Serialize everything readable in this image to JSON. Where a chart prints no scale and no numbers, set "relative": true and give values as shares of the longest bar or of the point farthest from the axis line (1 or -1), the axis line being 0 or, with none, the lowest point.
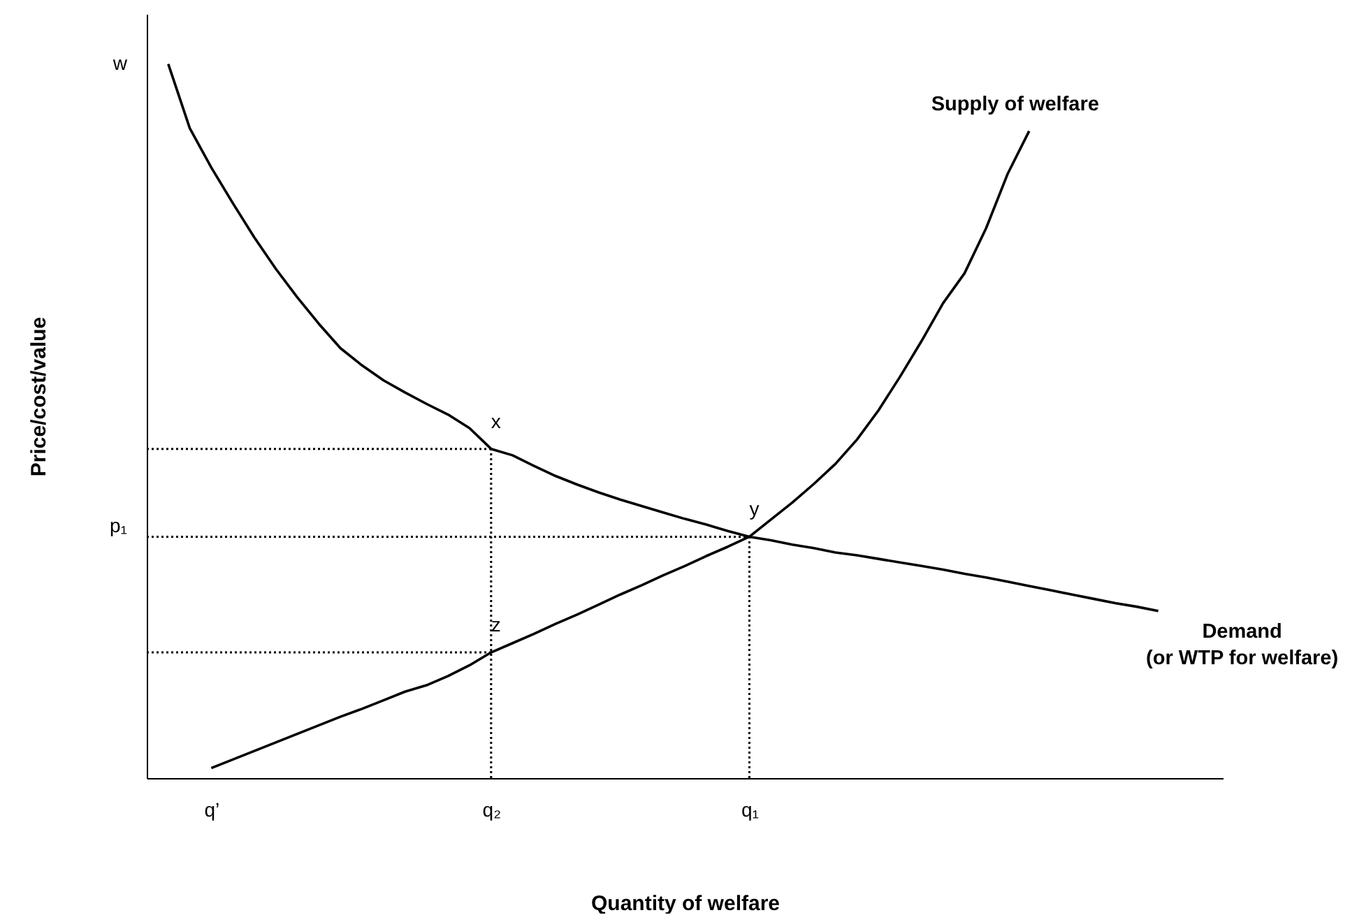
{
  "chart_data": {
    "type": "line",
    "relative": true,
    "xlabel": "Quantity of welfare",
    "ylabel": "Price/cost/value",
    "categories": [
      null,
      null,
      null,
      "q’",
      null,
      null,
      null,
      null,
      null,
      null,
      null,
      null,
      null,
      null,
      null,
      null,
      "q₂",
      null,
      null,
      null,
      null,
      null,
      null,
      null,
      null,
      null,
      null,
      null,
      "q₁",
      null,
      null,
      null,
      null,
      null,
      null,
      null,
      null,
      null,
      null,
      null,
      null,
      null,
      null,
      null,
      null,
      null,
      null,
      null,
      null,
      null,
      null
    ],
    "grid": false,
    "marker": "none",
    "series": [
      {
        "name": "Supply of welfare",
        "color": "#000000",
        "values": [
          null,
          null,
          null,
          0.014,
          0.026,
          0.038,
          0.05,
          0.062,
          0.074,
          0.086,
          0.097,
          0.109,
          0.121,
          0.13,
          0.143,
          0.158,
          0.176,
          0.189,
          0.202,
          0.216,
          0.229,
          0.243,
          0.257,
          0.27,
          0.284,
          0.297,
          0.311,
          0.324,
          0.338,
          0.362,
          0.386,
          0.412,
          0.44,
          0.474,
          0.515,
          0.562,
          0.612,
          0.665,
          0.707,
          0.77,
          0.846,
          0.906,
          null,
          null,
          null,
          null,
          null,
          null,
          null,
          null,
          null
        ]
      },
      {
        "name": "Demand\n(or WTP for welfare)",
        "color": "#000000",
        "values": [
          null,
          1.0,
          0.91,
          0.855,
          0.805,
          0.757,
          0.713,
          0.673,
          0.636,
          0.602,
          0.578,
          0.557,
          0.54,
          0.524,
          0.509,
          0.49,
          0.461,
          0.452,
          0.437,
          0.423,
          0.411,
          0.4,
          0.39,
          0.381,
          0.372,
          0.363,
          0.355,
          0.346,
          0.338,
          0.333,
          0.327,
          0.322,
          0.316,
          0.312,
          0.307,
          0.302,
          0.297,
          0.292,
          0.286,
          0.281,
          0.275,
          0.269,
          0.263,
          0.257,
          0.251,
          0.245,
          0.24,
          0.234,
          null,
          null,
          null
        ]
      },
      {
        "color": "#000000",
        "line_style": "dotted",
        "values": [
          0.461,
          0.461,
          0.461,
          0.461,
          0.461,
          0.461,
          0.461,
          0.461,
          0.461,
          0.461,
          0.461,
          0.461,
          0.461,
          0.461,
          0.461,
          0.461,
          0.461,
          null,
          null,
          null,
          null,
          null,
          null,
          null,
          null,
          null,
          null,
          null,
          null,
          null,
          null,
          null,
          null,
          null,
          null,
          null,
          null,
          null,
          null,
          null,
          null,
          null,
          null,
          null,
          null,
          null,
          null,
          null,
          null,
          null,
          null
        ]
      },
      {
        "name": "p₁",
        "color": "#000000",
        "line_style": "dotted",
        "values": [
          0.338,
          0.338,
          0.338,
          0.338,
          0.338,
          0.338,
          0.338,
          0.338,
          0.338,
          0.338,
          0.338,
          0.338,
          0.338,
          0.338,
          0.338,
          0.338,
          0.338,
          0.338,
          0.338,
          0.338,
          0.338,
          0.338,
          0.338,
          0.338,
          0.338,
          0.338,
          0.338,
          0.338,
          0.338,
          null,
          null,
          null,
          null,
          null,
          null,
          null,
          null,
          null,
          null,
          null,
          null,
          null,
          null,
          null,
          null,
          null,
          null,
          null,
          null,
          null,
          null
        ]
      },
      {
        "color": "#000000",
        "line_style": "dotted",
        "values": [
          0.176,
          0.176,
          0.176,
          0.176,
          0.176,
          0.176,
          0.176,
          0.176,
          0.176,
          0.176,
          0.176,
          0.176,
          0.176,
          0.176,
          0.176,
          0.176,
          0.176,
          null,
          null,
          null,
          null,
          null,
          null,
          null,
          null,
          null,
          null,
          null,
          null,
          null,
          null,
          null,
          null,
          null,
          null,
          null,
          null,
          null,
          null,
          null,
          null,
          null,
          null,
          null,
          null,
          null,
          null,
          null,
          null,
          null,
          null
        ]
      }
    ],
    "ref_lines": [
      {
        "axis": "x",
        "value": "q₂",
        "line_style": "dotted",
        "color": "#000000"
      },
      {
        "axis": "x",
        "value": "q₁",
        "line_style": "dotted",
        "color": "#000000"
      }
    ],
    "annotations": [
      "w",
      {
        "text": "x",
        "x": "q₂",
        "y": 0.461
      },
      {
        "text": "y",
        "x": "q₁",
        "y": 0.338
      },
      {
        "text": "z",
        "x": "q₂",
        "y": 0.176
      }
    ]
  }
}
